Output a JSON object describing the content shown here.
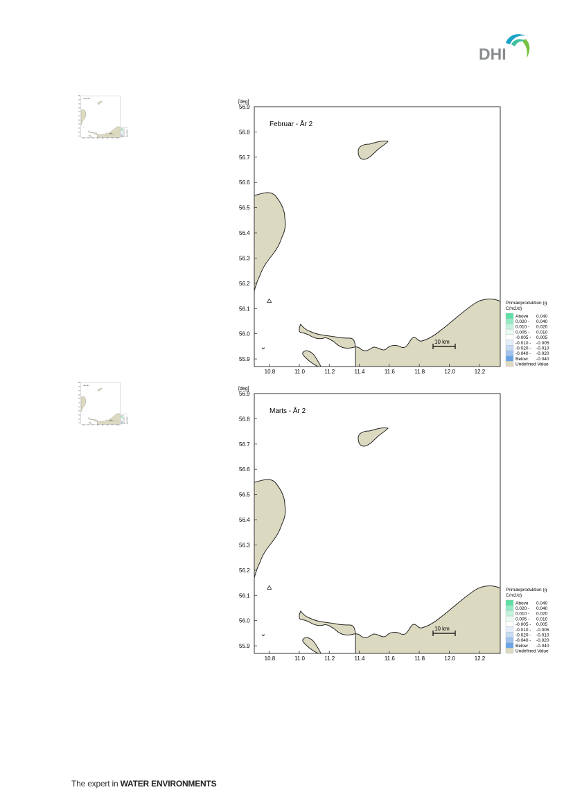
{
  "logo": {
    "text": "DHI",
    "colors": {
      "wave1": "#1aa3c8",
      "wave2": "#3fc0a0",
      "wave3": "#76c043",
      "letters": "#8a8d8f"
    }
  },
  "footer": {
    "prefix": "The expert in ",
    "emphasis": "WATER ENVIRONMENTS"
  },
  "colors": {
    "land": "#dcd9c1",
    "coast": "#222222",
    "frame": "#333333"
  },
  "map": {
    "unit": "[deg]",
    "x_ticks": [
      "10.8",
      "11.0",
      "11.2",
      "11.4",
      "11.6",
      "11.8",
      "12.0",
      "12.2"
    ],
    "y_ticks": [
      "56.9",
      "56.8",
      "56.7",
      "56.6",
      "56.5",
      "56.4",
      "56.3",
      "56.2",
      "56.1",
      "56.0",
      "55.9"
    ],
    "scalebar": "10 km",
    "xlim": [
      10.7,
      12.34
    ],
    "ylim": [
      55.87,
      56.9
    ]
  },
  "legend": {
    "title_line1": "Primærproduktion (g",
    "title_line2": "C/m2/d)",
    "entries": [
      {
        "a": "Above",
        "b": "0.040",
        "color": "#5ee0a4"
      },
      {
        "a": "0.020 -",
        "b": "0.040",
        "color": "#93ebc3"
      },
      {
        "a": "0.010 -",
        "b": "0.020",
        "color": "#c2f3dc"
      },
      {
        "a": "0.005 -",
        "b": "0.010",
        "color": "#e9faf1"
      },
      {
        "a": "-0.005 -",
        "b": "0.005",
        "color": "#ffffff"
      },
      {
        "a": "-0.010 -",
        "b": "-0.005",
        "color": "#e4eefa"
      },
      {
        "a": "-0.020 -",
        "b": "-0.010",
        "color": "#c6dbf4"
      },
      {
        "a": "-0.040 -",
        "b": "-0.020",
        "color": "#9fc3ee"
      },
      {
        "a": "Below",
        "b": "-0.040",
        "color": "#6aa4e6"
      },
      {
        "a": "Undefined Value",
        "b": "",
        "color": "#dcd9c1"
      }
    ]
  },
  "panels": [
    {
      "title": "Februar - År 2"
    },
    {
      "title": "Marts - År 2"
    }
  ]
}
